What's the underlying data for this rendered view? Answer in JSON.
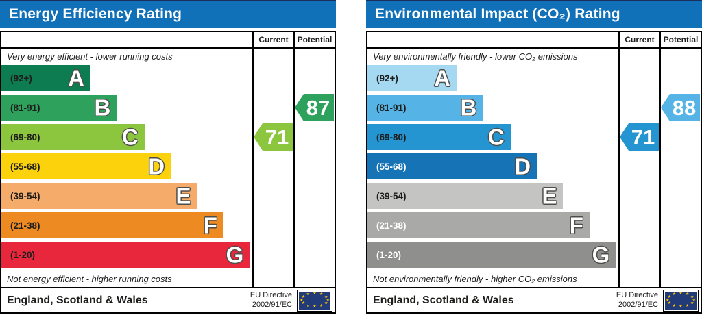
{
  "colors": {
    "header_blue": "#1070b8",
    "table_border": "#000000",
    "flag_navy": "#233a78",
    "star_yellow": "#ffcc00"
  },
  "charts": [
    {
      "title": "Energy Efficiency Rating",
      "col_current": "Current",
      "col_potential": "Potential",
      "caption_top": "Very energy efficient - lower running costs",
      "caption_bottom": "Not energy efficient - higher running costs",
      "bands": [
        {
          "letter": "A",
          "range": "(92+)",
          "color": "#0e7c51",
          "width_pct": 35.5,
          "text_color": "#1d1d1b"
        },
        {
          "letter": "B",
          "range": "(81-91)",
          "color": "#2ea25c",
          "width_pct": 46,
          "text_color": "#1d1d1b"
        },
        {
          "letter": "C",
          "range": "(69-80)",
          "color": "#8cc63f",
          "width_pct": 57,
          "text_color": "#1d1d1b"
        },
        {
          "letter": "D",
          "range": "(55-68)",
          "color": "#fcd20c",
          "width_pct": 67.5,
          "text_color": "#1d1d1b"
        },
        {
          "letter": "E",
          "range": "(39-54)",
          "color": "#f5ab69",
          "width_pct": 78,
          "text_color": "#1d1d1b"
        },
        {
          "letter": "F",
          "range": "(21-38)",
          "color": "#ee8a22",
          "width_pct": 88.5,
          "text_color": "#1d1d1b"
        },
        {
          "letter": "G",
          "range": "(1-20)",
          "color": "#e8273d",
          "width_pct": 99,
          "text_color": "#1d1d1b"
        }
      ],
      "current": {
        "label": "71",
        "color": "#8cc63f",
        "band_index": 2
      },
      "potential": {
        "label": "87",
        "color": "#2ea25c",
        "band_index": 1
      },
      "footer_region": "England, Scotland & Wales",
      "footer_directive_1": "EU Directive",
      "footer_directive_2": "2002/91/EC"
    },
    {
      "title": "Environmental Impact (CO₂) Rating",
      "col_current": "Current",
      "col_potential": "Potential",
      "caption_top": "Very environmentally friendly - lower CO₂ emissions",
      "caption_bottom": "Not environmentally friendly - higher CO₂ emissions",
      "bands": [
        {
          "letter": "A",
          "range": "(92+)",
          "color": "#a5d8f1",
          "width_pct": 35.5,
          "text_color": "#1d1d1b"
        },
        {
          "letter": "B",
          "range": "(81-91)",
          "color": "#55b4e5",
          "width_pct": 46,
          "text_color": "#1d1d1b"
        },
        {
          "letter": "C",
          "range": "(69-80)",
          "color": "#2495d0",
          "width_pct": 57,
          "text_color": "#1d1d1b"
        },
        {
          "letter": "D",
          "range": "(55-68)",
          "color": "#1673b6",
          "width_pct": 67.5,
          "text_color": "#ffffff"
        },
        {
          "letter": "E",
          "range": "(39-54)",
          "color": "#c4c4c2",
          "width_pct": 78,
          "text_color": "#1d1d1b"
        },
        {
          "letter": "F",
          "range": "(21-38)",
          "color": "#a9a9a7",
          "width_pct": 88.5,
          "text_color": "#ffffff"
        },
        {
          "letter": "G",
          "range": "(1-20)",
          "color": "#8f8f8d",
          "width_pct": 99,
          "text_color": "#ffffff"
        }
      ],
      "current": {
        "label": "71",
        "color": "#2495d0",
        "band_index": 2
      },
      "potential": {
        "label": "88",
        "color": "#55b4e5",
        "band_index": 1
      },
      "footer_region": "England, Scotland & Wales",
      "footer_directive_1": "EU Directive",
      "footer_directive_2": "2002/91/EC"
    }
  ],
  "chart_data": [
    {
      "type": "bar",
      "title": "Energy Efficiency Rating",
      "orientation": "horizontal",
      "categories": [
        "A (92+)",
        "B (81-91)",
        "C (69-80)",
        "D (55-68)",
        "E (39-54)",
        "F (21-38)",
        "G (1-20)"
      ],
      "values": [
        35.5,
        46,
        57,
        67.5,
        78,
        88.5,
        99
      ],
      "values_unit": "bar width % of band area (fixed decorative scale)",
      "band_colors": [
        "#0e7c51",
        "#2ea25c",
        "#8cc63f",
        "#fcd20c",
        "#f5ab69",
        "#ee8a22",
        "#e8273d"
      ],
      "current": 71,
      "current_band": "C",
      "potential": 87,
      "potential_band": "B",
      "top_annotation": "Very energy efficient - lower running costs",
      "bottom_annotation": "Not energy efficient - higher running costs",
      "footer": "England, Scotland & Wales | EU Directive 2002/91/EC"
    },
    {
      "type": "bar",
      "title": "Environmental Impact (CO₂) Rating",
      "orientation": "horizontal",
      "categories": [
        "A (92+)",
        "B (81-91)",
        "C (69-80)",
        "D (55-68)",
        "E (39-54)",
        "F (21-38)",
        "G (1-20)"
      ],
      "values": [
        35.5,
        46,
        57,
        67.5,
        78,
        88.5,
        99
      ],
      "values_unit": "bar width % of band area (fixed decorative scale)",
      "band_colors": [
        "#a5d8f1",
        "#55b4e5",
        "#2495d0",
        "#1673b6",
        "#c4c4c2",
        "#a9a9a7",
        "#8f8f8d"
      ],
      "current": 71,
      "current_band": "C",
      "potential": 88,
      "potential_band": "B",
      "top_annotation": "Very environmentally friendly - lower CO₂ emissions",
      "bottom_annotation": "Not environmentally friendly - higher CO₂ emissions",
      "footer": "England, Scotland & Wales | EU Directive 2002/91/EC"
    }
  ]
}
